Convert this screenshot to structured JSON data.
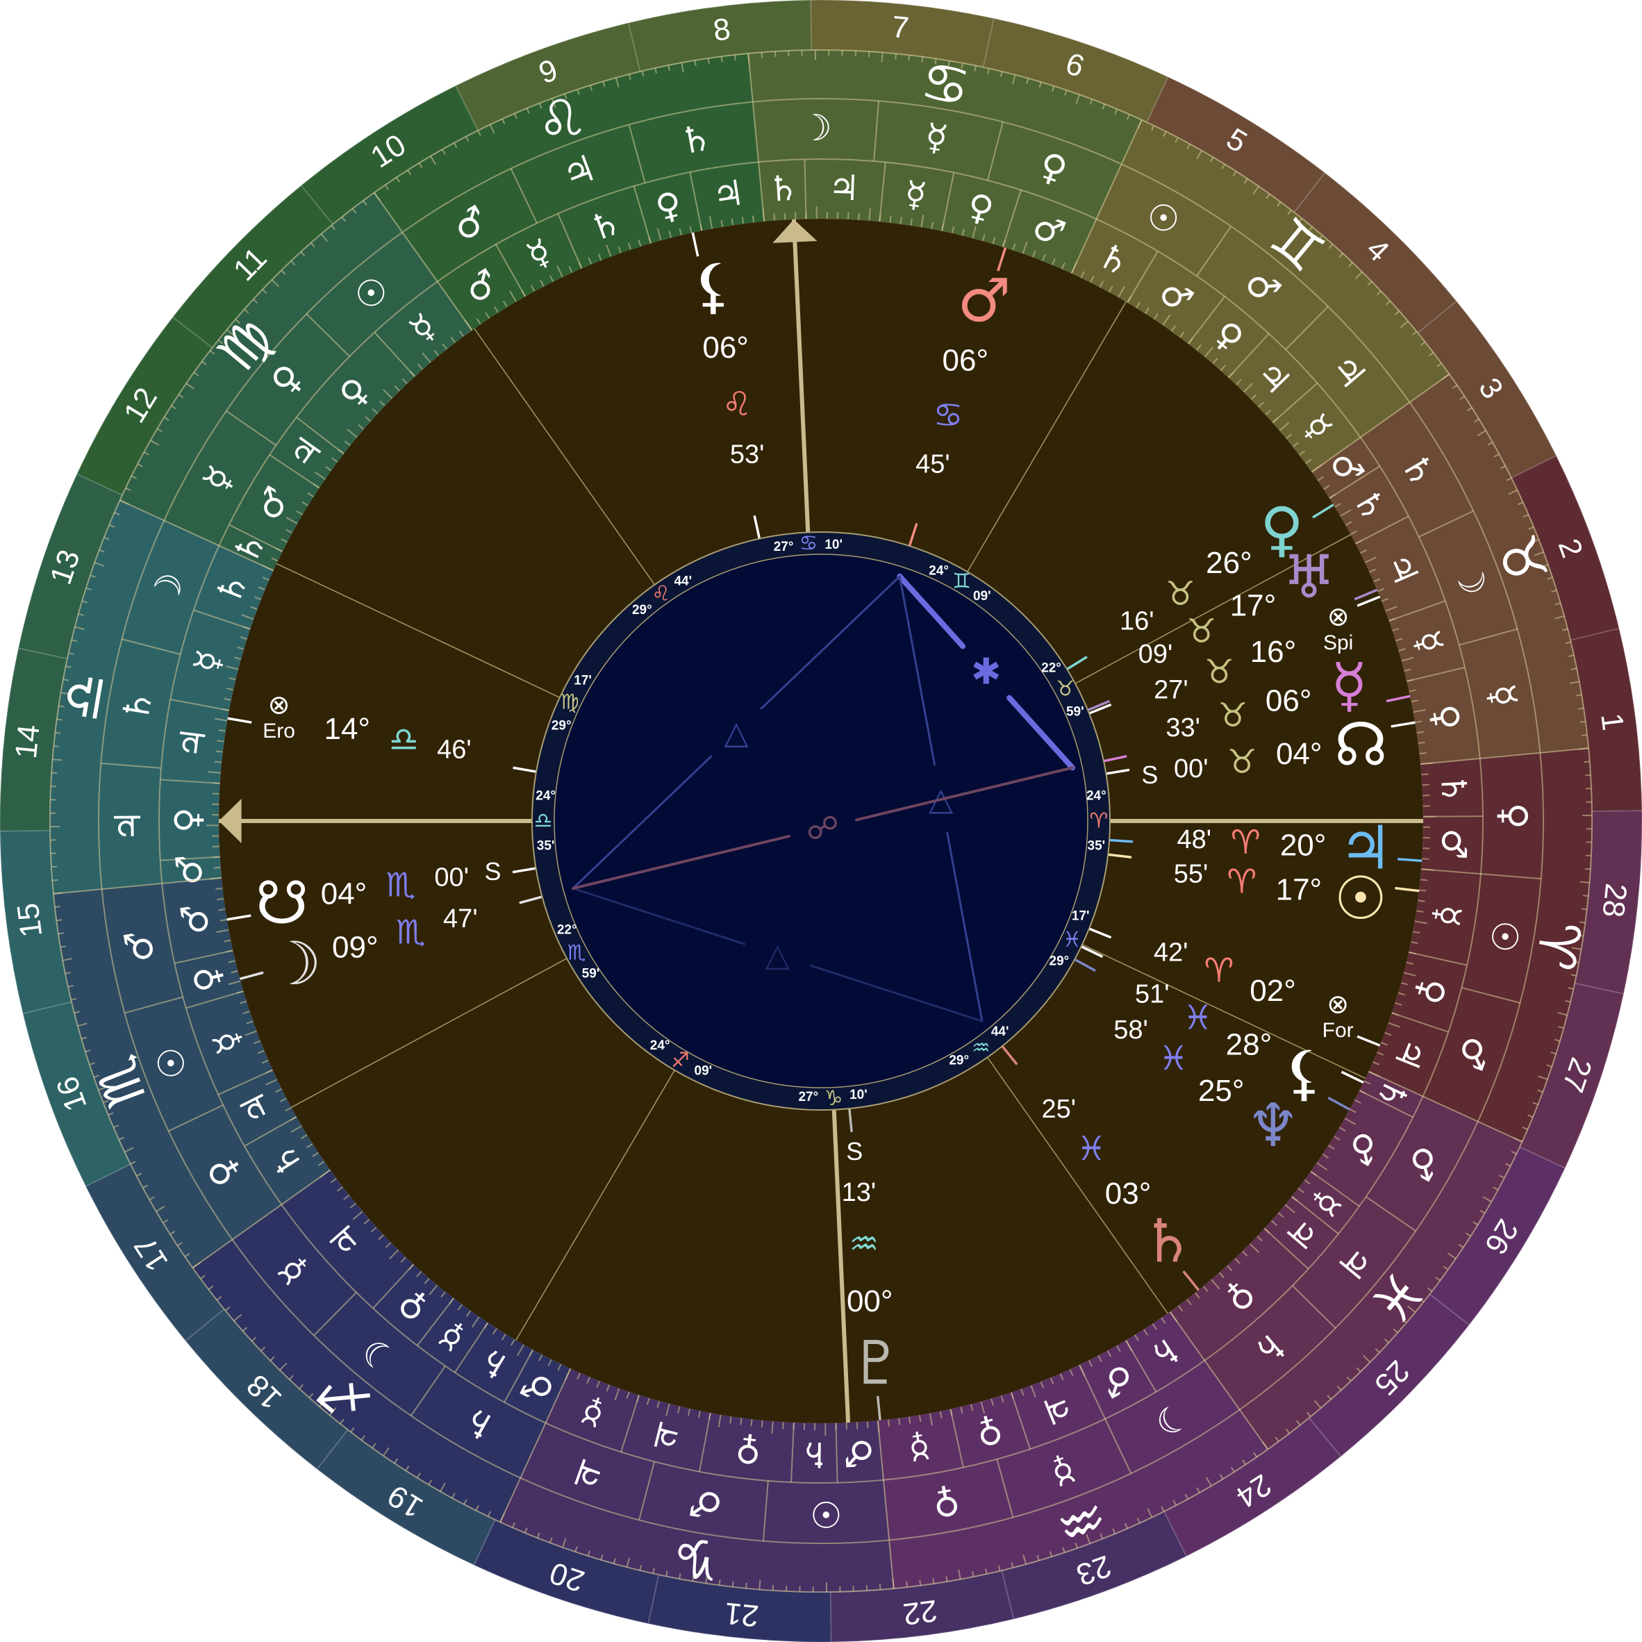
{
  "chart": {
    "ascendant": {
      "sign": 6,
      "deg": "24°",
      "min": "35'"
    },
    "colors": {
      "house_area": "#312306",
      "inner_band": "#0b1636",
      "inner_disc": "#010b36",
      "axis": "#c9bb8e",
      "cusp_line": "#9c9160",
      "glyph_white": "#ffffff"
    },
    "signs": [
      {
        "name": "Aries",
        "glyph": "♈",
        "band_color": "#5e2b32",
        "element_color": "#f47c74"
      },
      {
        "name": "Taurus",
        "glyph": "♉",
        "band_color": "#6b4a36",
        "element_color": "#c5c283"
      },
      {
        "name": "Gemini",
        "glyph": "♊",
        "band_color": "#6a6434",
        "element_color": "#7fd8d2"
      },
      {
        "name": "Cancer",
        "glyph": "♋",
        "band_color": "#4f6634",
        "element_color": "#7f7ff0"
      },
      {
        "name": "Leo",
        "glyph": "♌",
        "band_color": "#2e5f33",
        "element_color": "#f47c74"
      },
      {
        "name": "Virgo",
        "glyph": "♍",
        "band_color": "#2e6048",
        "element_color": "#c5c283"
      },
      {
        "name": "Libra",
        "glyph": "♎",
        "band_color": "#2e6366",
        "element_color": "#7fd8d2"
      },
      {
        "name": "Scorpio",
        "glyph": "♏",
        "band_color": "#2e4a62",
        "element_color": "#7f7ff0"
      },
      {
        "name": "Sagittarius",
        "glyph": "♐",
        "band_color": "#2e3262",
        "element_color": "#f47c74"
      },
      {
        "name": "Capricorn",
        "glyph": "♑",
        "band_color": "#473063",
        "element_color": "#c5c283"
      },
      {
        "name": "Aquarius",
        "glyph": "♒",
        "band_color": "#5d3065",
        "element_color": "#7fd8d2"
      },
      {
        "name": "Pisces",
        "glyph": "♓",
        "band_color": "#623052",
        "element_color": "#7f7ff0"
      }
    ],
    "planet_glyphs": {
      "sun": "☉",
      "moon": "☽",
      "mercury": "☿",
      "venus": "♀",
      "mars": "♂",
      "jupiter": "♃",
      "saturn": "♄",
      "uranus": "♅",
      "neptune": "♆",
      "pluto": "♇",
      "north_node": "☊",
      "south_node": "☋",
      "lilith": "⚸",
      "star": "⊗"
    },
    "decans": [
      [
        "mars",
        "sun",
        "venus"
      ],
      [
        "mercury",
        "moon",
        "saturn"
      ],
      [
        "jupiter",
        "mars",
        "sun"
      ],
      [
        "venus",
        "mercury",
        "moon"
      ],
      [
        "saturn",
        "jupiter",
        "mars"
      ],
      [
        "sun",
        "venus",
        "mercury"
      ],
      [
        "moon",
        "saturn",
        "jupiter"
      ],
      [
        "mars",
        "sun",
        "venus"
      ],
      [
        "mercury",
        "moon",
        "saturn"
      ],
      [
        "jupiter",
        "mars",
        "sun"
      ],
      [
        "venus",
        "mercury",
        "moon"
      ],
      [
        "saturn",
        "jupiter",
        "mars"
      ]
    ],
    "terms": [
      [
        [
          "jupiter",
          6
        ],
        [
          "venus",
          12
        ],
        [
          "mercury",
          20
        ],
        [
          "mars",
          25
        ],
        [
          "saturn",
          30
        ]
      ],
      [
        [
          "venus",
          8
        ],
        [
          "mercury",
          14
        ],
        [
          "jupiter",
          22
        ],
        [
          "saturn",
          27
        ],
        [
          "mars",
          30
        ]
      ],
      [
        [
          "mercury",
          6
        ],
        [
          "jupiter",
          12
        ],
        [
          "venus",
          17
        ],
        [
          "mars",
          24
        ],
        [
          "saturn",
          30
        ]
      ],
      [
        [
          "mars",
          7
        ],
        [
          "venus",
          13
        ],
        [
          "mercury",
          19
        ],
        [
          "jupiter",
          26
        ],
        [
          "saturn",
          30
        ]
      ],
      [
        [
          "jupiter",
          6
        ],
        [
          "venus",
          11
        ],
        [
          "saturn",
          18
        ],
        [
          "mercury",
          24
        ],
        [
          "mars",
          30
        ]
      ],
      [
        [
          "mercury",
          7
        ],
        [
          "venus",
          17
        ],
        [
          "jupiter",
          21
        ],
        [
          "mars",
          28
        ],
        [
          "saturn",
          30
        ]
      ],
      [
        [
          "saturn",
          6
        ],
        [
          "mercury",
          14
        ],
        [
          "jupiter",
          21
        ],
        [
          "venus",
          28
        ],
        [
          "mars",
          30
        ]
      ],
      [
        [
          "mars",
          7
        ],
        [
          "venus",
          11
        ],
        [
          "mercury",
          19
        ],
        [
          "jupiter",
          24
        ],
        [
          "saturn",
          30
        ]
      ],
      [
        [
          "jupiter",
          12
        ],
        [
          "venus",
          17
        ],
        [
          "mercury",
          21
        ],
        [
          "saturn",
          26
        ],
        [
          "mars",
          30
        ]
      ],
      [
        [
          "mercury",
          7
        ],
        [
          "jupiter",
          14
        ],
        [
          "venus",
          22
        ],
        [
          "saturn",
          26
        ],
        [
          "mars",
          30
        ]
      ],
      [
        [
          "mercury",
          7
        ],
        [
          "venus",
          13
        ],
        [
          "jupiter",
          20
        ],
        [
          "mars",
          25
        ],
        [
          "saturn",
          30
        ]
      ],
      [
        [
          "venus",
          12
        ],
        [
          "jupiter",
          16
        ],
        [
          "mercury",
          19
        ],
        [
          "mars",
          28
        ],
        [
          "saturn",
          30
        ]
      ]
    ],
    "mansions": {
      "start_longitude": 25.3,
      "labels": [
        "1",
        "2",
        "3",
        "4",
        "5",
        "6",
        "7",
        "8",
        "9",
        "10",
        "11",
        "12",
        "13",
        "14",
        "15",
        "16",
        "17",
        "18",
        "19",
        "20",
        "21",
        "22",
        "23",
        "24",
        "25",
        "26",
        "27",
        "28"
      ]
    },
    "houses": [
      {
        "house": 1,
        "sign": 6,
        "deg": "24°",
        "min": "35'"
      },
      {
        "house": 2,
        "sign": 7,
        "deg": "22°",
        "min": "59'"
      },
      {
        "house": 3,
        "sign": 8,
        "deg": "24°",
        "min": "09'"
      },
      {
        "house": 4,
        "sign": 9,
        "deg": "27°",
        "min": "10'"
      },
      {
        "house": 5,
        "sign": 10,
        "deg": "29°",
        "min": "44'"
      },
      {
        "house": 6,
        "sign": 11,
        "deg": "29°",
        "min": "17'"
      },
      {
        "house": 7,
        "sign": 0,
        "deg": "24°",
        "min": "35'"
      },
      {
        "house": 8,
        "sign": 1,
        "deg": "22°",
        "min": "59'"
      },
      {
        "house": 9,
        "sign": 2,
        "deg": "24°",
        "min": "09'"
      },
      {
        "house": 10,
        "sign": 3,
        "deg": "27°",
        "min": "10'"
      },
      {
        "house": 11,
        "sign": 4,
        "deg": "29°",
        "min": "44'"
      },
      {
        "house": 12,
        "sign": 5,
        "deg": "29°",
        "min": "17'"
      }
    ],
    "points": [
      {
        "id": "lilith",
        "glyph": "lilith",
        "sign": 4,
        "deg": "06°",
        "min": "53'",
        "color": "#ffffff"
      },
      {
        "id": "mars",
        "glyph": "mars",
        "sign": 3,
        "deg": "06°",
        "min": "45'",
        "color": "#f28b82"
      },
      {
        "id": "venus",
        "glyph": "venus",
        "sign": 1,
        "deg": "26°",
        "min": "16'",
        "color": "#7fd4d1"
      },
      {
        "id": "uranus",
        "glyph": "uranus",
        "sign": 1,
        "deg": "17°",
        "min": "09'",
        "color": "#a78bcb"
      },
      {
        "id": "spica",
        "glyph": "star",
        "label": "Spi",
        "sign": 1,
        "deg": "16°",
        "min": "27'",
        "color": "#ffffff"
      },
      {
        "id": "mercury",
        "glyph": "mercury",
        "sign": 1,
        "deg": "06°",
        "min": "33'",
        "color": "#d67fd7"
      },
      {
        "id": "north-node",
        "glyph": "north_node",
        "sign": 1,
        "deg": "04°",
        "min": "00'",
        "flag": "S",
        "color": "#ffffff"
      },
      {
        "id": "jupiter",
        "glyph": "jupiter",
        "sign": 0,
        "deg": "20°",
        "min": "48'",
        "color": "#6cbcf2"
      },
      {
        "id": "sun",
        "glyph": "sun",
        "sign": 0,
        "deg": "17°",
        "min": "55'",
        "color": "#fbe6b0"
      },
      {
        "id": "fortune",
        "glyph": "star",
        "label": "For",
        "sign": 0,
        "deg": "02°",
        "min": "42'",
        "color": "#ffffff"
      },
      {
        "id": "lilith-2",
        "glyph": "lilith",
        "sign": 11,
        "deg": "28°",
        "min": "51'",
        "color": "#ffffff"
      },
      {
        "id": "neptune",
        "glyph": "neptune",
        "sign": 11,
        "deg": "25°",
        "min": "58'",
        "color": "#7b87c9"
      },
      {
        "id": "saturn",
        "glyph": "saturn",
        "sign": 11,
        "deg": "03°",
        "min": "25'",
        "color": "#d9857c"
      },
      {
        "id": "pluto",
        "glyph": "pluto",
        "sign": 10,
        "deg": "00°",
        "min": "13'",
        "flag": "S",
        "color": "#b9b8b0"
      },
      {
        "id": "moon",
        "glyph": "moon",
        "sign": 7,
        "deg": "09°",
        "min": "47'",
        "color": "#e2e2e2"
      },
      {
        "id": "south-node",
        "glyph": "south_node",
        "sign": 7,
        "deg": "04°",
        "min": "00'",
        "flag": "S",
        "color": "#ffffff"
      },
      {
        "id": "eros",
        "glyph": "star",
        "label": "Ero",
        "sign": 6,
        "deg": "14°",
        "min": "46'",
        "color": "#ffffff"
      }
    ],
    "aspects": [
      {
        "from": "mars",
        "to": "mercury",
        "type": "sextile",
        "glyph": "✱",
        "color": "#6b6be0"
      },
      {
        "from": "mars",
        "to": "moon",
        "type": "trine",
        "glyph": "△",
        "color": "#34408f"
      },
      {
        "from": "mars",
        "to": "saturn",
        "type": "trine",
        "glyph": "△",
        "color": "#34408f"
      },
      {
        "from": "moon",
        "to": "saturn",
        "type": "trine",
        "glyph": "△",
        "color": "#222a66"
      },
      {
        "from": "mercury",
        "to": "moon",
        "type": "opposition",
        "glyph": "☍",
        "color": "#6e4560"
      }
    ]
  }
}
